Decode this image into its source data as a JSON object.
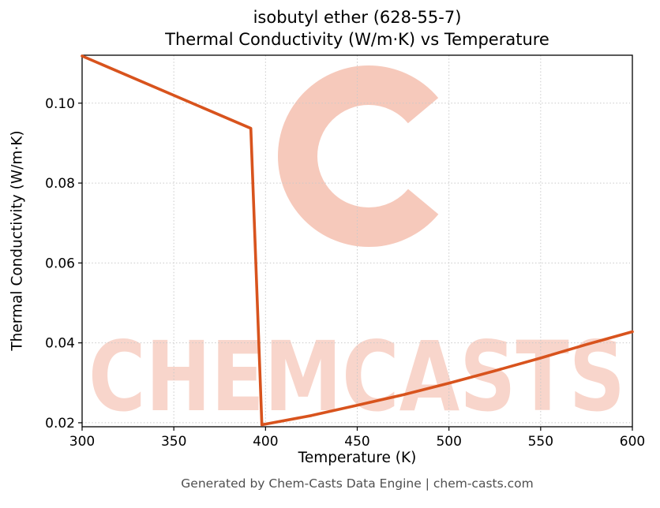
{
  "chart_data": {
    "type": "line",
    "title": "isobutyl ether (628-55-7)",
    "subtitle": "Thermal Conductivity (W/m·K) vs Temperature",
    "xlabel": "Temperature (K)",
    "ylabel": "Thermal Conductivity (W/m·K)",
    "xlim": [
      300,
      600
    ],
    "ylim": [
      0.019,
      0.112
    ],
    "x_ticks": [
      300,
      350,
      400,
      450,
      500,
      550,
      600
    ],
    "y_ticks": [
      0.02,
      0.04,
      0.06,
      0.08,
      0.1
    ],
    "grid": true,
    "legend": "none",
    "line_color": "#d8531d",
    "series": [
      {
        "name": "thermal-conductivity",
        "points": [
          [
            300,
            0.1118
          ],
          [
            392,
            0.0937
          ],
          [
            398,
            0.0195
          ],
          [
            425,
            0.0218
          ],
          [
            450,
            0.0244
          ],
          [
            475,
            0.027
          ],
          [
            500,
            0.0299
          ],
          [
            525,
            0.033
          ],
          [
            550,
            0.0362
          ],
          [
            575,
            0.0396
          ],
          [
            600,
            0.0428
          ]
        ]
      }
    ]
  },
  "watermark": {
    "text": "CHEMCASTS",
    "logo_letter": "C",
    "color": "#ef9d84"
  },
  "footer": {
    "text": "Generated by Chem-Casts Data Engine | chem-casts.com"
  }
}
